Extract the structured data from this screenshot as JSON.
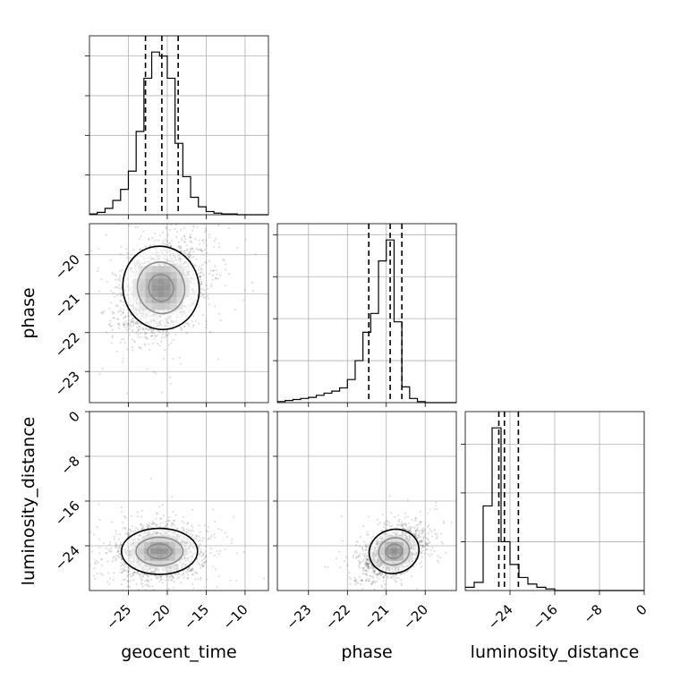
{
  "chart_data": {
    "type": "corner",
    "grid": true,
    "parameters": [
      "geocent_time",
      "phase",
      "luminosity_distance"
    ],
    "axis_labels": {
      "x": [
        "geocent_time",
        "phase",
        "luminosity_distance"
      ],
      "y": [
        "phase",
        "luminosity_distance"
      ]
    },
    "ranges": {
      "geocent_time": [
        -30,
        -7
      ],
      "phase": [
        -23.8,
        -19.2
      ],
      "luminosity_distance": [
        -32,
        0
      ]
    },
    "ticks": {
      "geocent_time": [
        {
          "v": -25,
          "label": "−25"
        },
        {
          "v": -20,
          "label": "−20"
        },
        {
          "v": -15,
          "label": "−15"
        },
        {
          "v": -10,
          "label": "−10"
        }
      ],
      "phase": [
        {
          "v": -23,
          "label": "−23"
        },
        {
          "v": -22,
          "label": "−22"
        },
        {
          "v": -21,
          "label": "−21"
        },
        {
          "v": -20,
          "label": "−20"
        }
      ],
      "luminosity_distance": [
        {
          "v": -24,
          "label": "−24"
        },
        {
          "v": -16,
          "label": "−16"
        },
        {
          "v": -8,
          "label": "−8"
        },
        {
          "v": 0,
          "label": "0"
        }
      ]
    },
    "hist_y_ticks_count": 4,
    "quantiles": {
      "geocent_time": [
        -22.8,
        -20.7,
        -18.6
      ],
      "phase": [
        -21.45,
        -20.9,
        -20.6
      ],
      "luminosity_distance": [
        -26.0,
        -25.0,
        -22.5
      ]
    },
    "histograms": {
      "geocent_time": {
        "edges_start": -30,
        "bin_width": 1,
        "counts": [
          1,
          3,
          8,
          18,
          32,
          55,
          105,
          172,
          205,
          200,
          172,
          90,
          48,
          22,
          10,
          4,
          2,
          1,
          1,
          0,
          0,
          0,
          0
        ]
      },
      "phase": {
        "edges_start": -23.8,
        "bin_width": 0.2,
        "counts": [
          1,
          2,
          3,
          4,
          5,
          7,
          9,
          11,
          14,
          22,
          40,
          67,
          85,
          135,
          155,
          77,
          15,
          4,
          1,
          0,
          0,
          0,
          0
        ]
      },
      "luminosity_distance": {
        "edges_start": -32,
        "bin_width": 1.6,
        "counts": [
          2,
          5,
          52,
          100,
          30,
          16,
          8,
          4,
          2,
          1,
          0,
          0,
          0,
          0,
          0,
          0,
          0,
          0,
          0,
          0
        ]
      }
    },
    "pairs": [
      {
        "x": "geocent_time",
        "y": "phase",
        "cx": -20.8,
        "cy": -20.85,
        "sx": 2.5,
        "sy": 0.55,
        "rho": 0.3,
        "tail_x": 0.5,
        "tail_y": 0.7,
        "n": 2200
      },
      {
        "x": "geocent_time",
        "y": "luminosity_distance",
        "cx": -21,
        "cy": -25,
        "sx": 2.5,
        "sy": 2.1,
        "rho": 0.0,
        "tail_x": 0.4,
        "tail_y": 1.4,
        "n": 2200
      },
      {
        "x": "phase",
        "y": "luminosity_distance",
        "cx": -20.8,
        "cy": -25,
        "sx": 0.33,
        "sy": 2.0,
        "rho": 0.35,
        "tail_x": 0.9,
        "tail_y": 0.6,
        "n": 2200
      }
    ]
  }
}
